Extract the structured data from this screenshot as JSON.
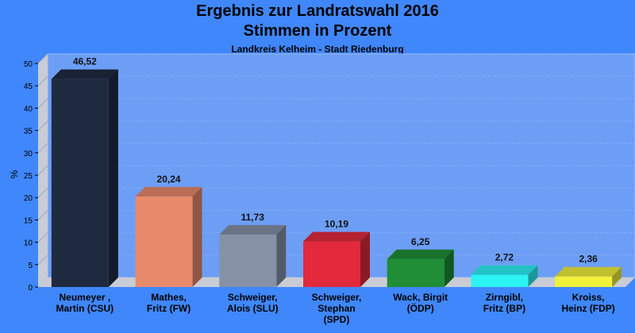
{
  "chart_data": {
    "type": "bar",
    "title": "Ergebnis zur Landratswahl 2016",
    "title2": "Stimmen in Prozent",
    "subtitle": "Landkreis Kelheim - Stadt Riedenburg",
    "ylabel": "%",
    "ylim": [
      0,
      50
    ],
    "yticks": [
      "0",
      "5",
      "10",
      "15",
      "20",
      "25",
      "30",
      "35",
      "40",
      "45",
      "50"
    ],
    "grid": true,
    "categories": [
      [
        "Neumeyer ,",
        "Martin (CSU)"
      ],
      [
        "Mathes,",
        "Fritz (FW)"
      ],
      [
        "Schweiger,",
        "Alois (SLU)"
      ],
      [
        "Schweiger,",
        "Stephan",
        "(SPD)"
      ],
      [
        "Wack, Birgit",
        "(ÖDP)"
      ],
      [
        "Zirngibl,",
        "Fritz (BP)"
      ],
      [
        "Kroiss,",
        "Heinz (FDP)"
      ]
    ],
    "values": [
      46.52,
      20.24,
      11.73,
      10.19,
      6.25,
      2.72,
      2.36
    ],
    "value_labels": [
      "46,52",
      "20,24",
      "11,73",
      "10,19",
      "6,25",
      "2,72",
      "2,36"
    ],
    "colors": [
      "#1e2a40",
      "#e88a6c",
      "#8691a6",
      "#e22a3c",
      "#1f8e36",
      "#2cf3f6",
      "#f1f03b"
    ]
  }
}
